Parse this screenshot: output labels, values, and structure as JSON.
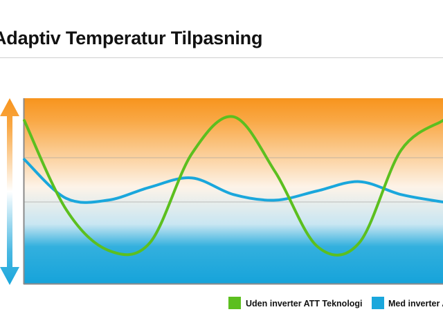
{
  "chart_data": {
    "type": "line",
    "title": "Adaptiv Temperatur Tilpasning",
    "xlabel": "",
    "ylabel": "",
    "grid": true,
    "legend_placement": "bottom",
    "x": [
      0,
      10,
      20,
      30,
      40,
      50,
      60,
      70,
      80,
      90,
      100
    ],
    "series": [
      {
        "name": "Uden inverter ATT Teknologi",
        "color": "#5cbf1f",
        "values": [
          88,
          40,
          18,
          22,
          70,
          90,
          60,
          20,
          22,
          72,
          88
        ]
      },
      {
        "name": "Med inverter ATT Teknologi",
        "color": "#1aa7dc",
        "values": [
          67,
          46,
          45,
          52,
          57,
          48,
          45,
          50,
          55,
          48,
          44
        ]
      }
    ],
    "colors": {
      "gradient_top": "#f7941d",
      "gradient_mid": "#fdf5ec",
      "gradient_bottom": "#1aa7dc",
      "arrow": "#1aa7dc",
      "frame": "#8a8a8a"
    }
  }
}
